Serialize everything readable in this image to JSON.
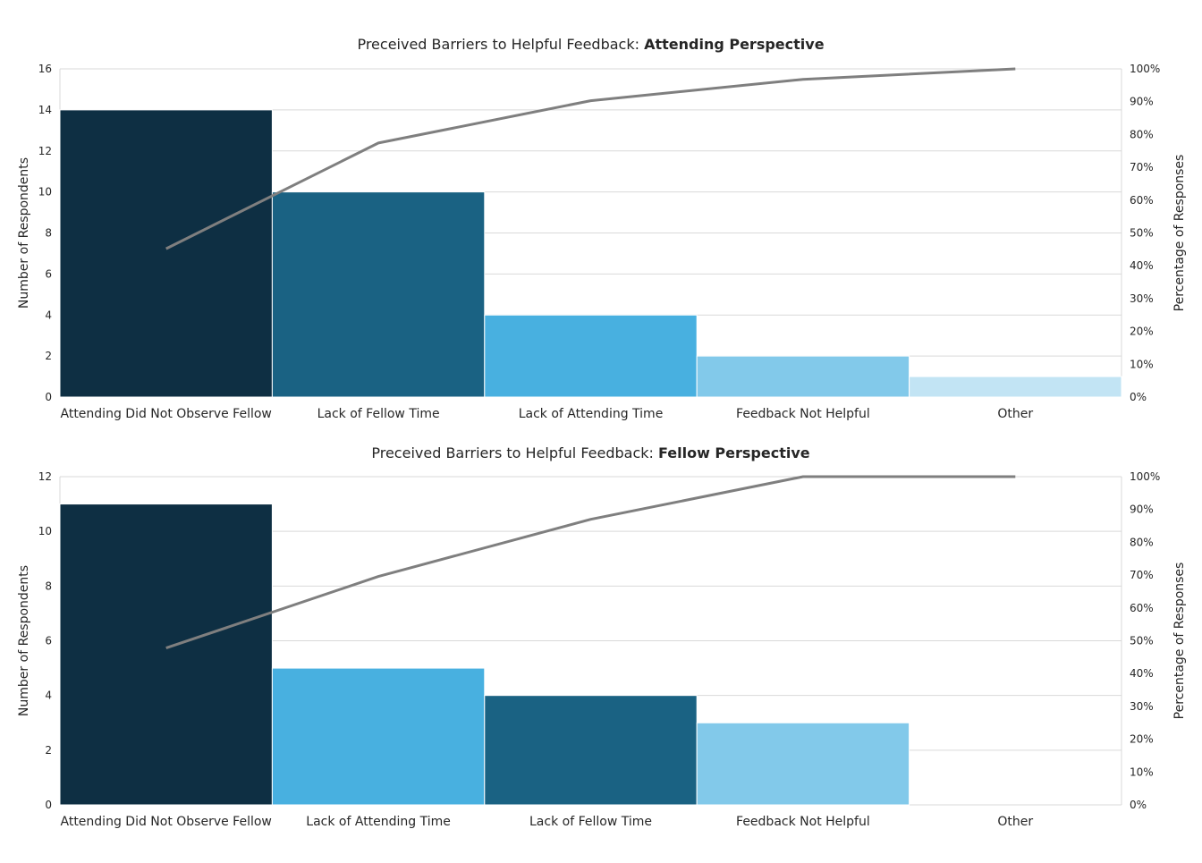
{
  "colors": {
    "dark_navy": "#0e2f43",
    "teal_blue": "#1a6283",
    "sky_blue": "#48b0e0",
    "light_blue": "#82c9ea",
    "pale_blue": "#c2e4f4",
    "cumulative_line": "#7f7f7f",
    "gridline": "#d9d9d9"
  },
  "chart_data": [
    {
      "type": "bar",
      "title": "Preceived Barriers to Helpful Feedback: ",
      "title_bold": "Attending Perspective",
      "ylabel": "Number of Respondents",
      "y2label": "Percentage of Responses",
      "ylim": [
        0,
        16
      ],
      "yticks": [
        "0",
        "2",
        "4",
        "6",
        "8",
        "10",
        "12",
        "14",
        "16"
      ],
      "y2lim": [
        0,
        100
      ],
      "y2ticks": [
        "0%",
        "10%",
        "20%",
        "30%",
        "40%",
        "50%",
        "60%",
        "70%",
        "80%",
        "90%",
        "100%"
      ],
      "grid": true,
      "categories": [
        "Attending Did Not Observe Fellow",
        "Lack of Fellow Time",
        "Lack of Attending Time",
        "Feedback Not Helpful",
        "Other"
      ],
      "values": [
        14,
        10,
        4,
        2,
        1
      ],
      "bar_colors": [
        "#0e2f43",
        "#1a6283",
        "#48b0e0",
        "#82c9ea",
        "#c2e4f4"
      ],
      "cumulative_percent": [
        45.2,
        77.4,
        90.3,
        96.8,
        100
      ]
    },
    {
      "type": "bar",
      "title": "Preceived Barriers to Helpful Feedback: ",
      "title_bold": "Fellow Perspective",
      "ylabel": "Number of Respondents",
      "y2label": "Percentage of Responses",
      "ylim": [
        0,
        12
      ],
      "yticks": [
        "0",
        "2",
        "4",
        "6",
        "8",
        "10",
        "12"
      ],
      "y2lim": [
        0,
        100
      ],
      "y2ticks": [
        "0%",
        "10%",
        "20%",
        "30%",
        "40%",
        "50%",
        "60%",
        "70%",
        "80%",
        "90%",
        "100%"
      ],
      "grid": true,
      "categories": [
        "Attending Did Not Observe Fellow",
        "Lack of Attending Time",
        "Lack of Fellow Time",
        "Feedback Not Helpful",
        "Other"
      ],
      "values": [
        11,
        5,
        4,
        3,
        0
      ],
      "bar_colors": [
        "#0e2f43",
        "#48b0e0",
        "#1a6283",
        "#82c9ea",
        "#c2e4f4"
      ],
      "cumulative_percent": [
        47.8,
        69.6,
        87.0,
        100,
        100
      ]
    }
  ]
}
